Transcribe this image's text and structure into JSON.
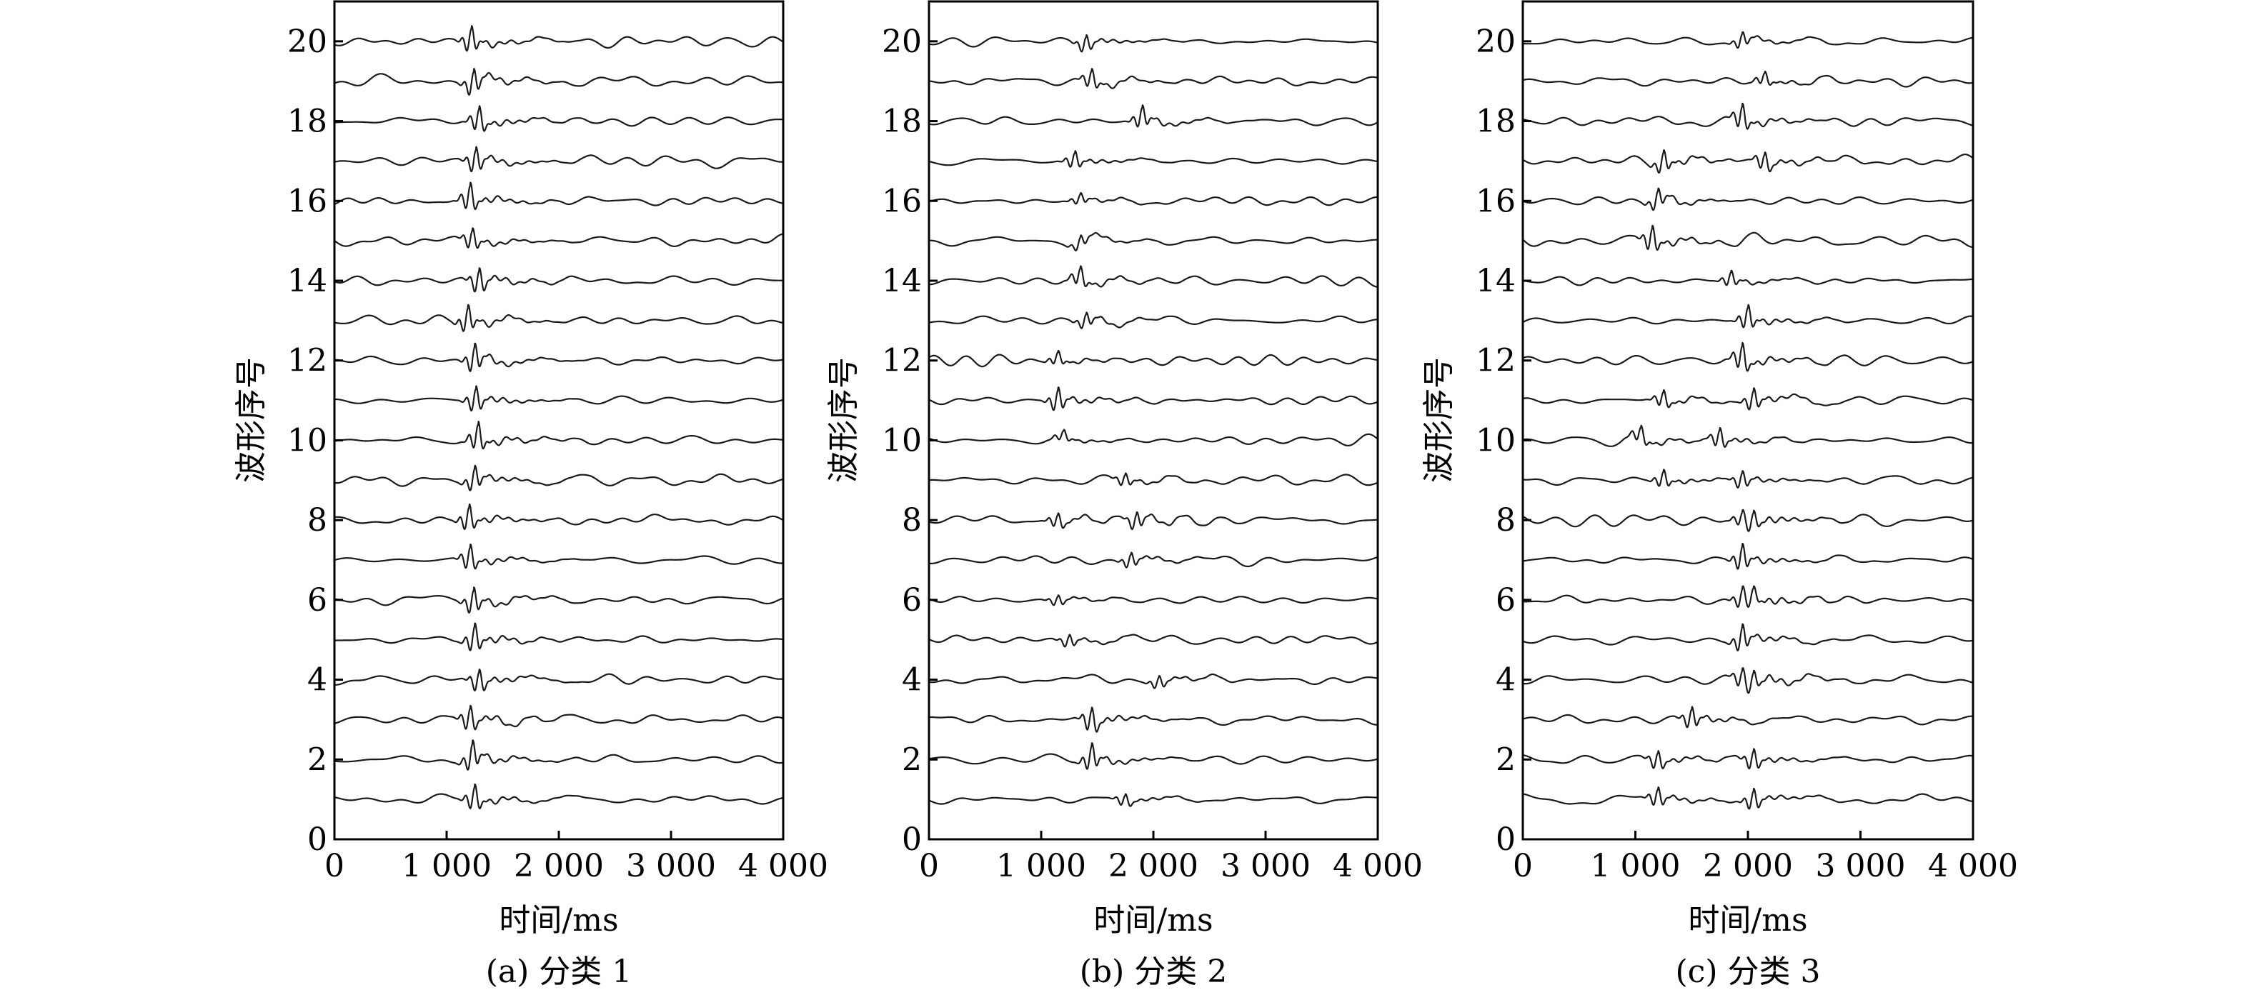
{
  "chart_data": [
    {
      "type": "line",
      "caption": "(a) 分类 1",
      "xlabel": "时间/ms",
      "ylabel": "波形序号",
      "xlim": [
        0,
        4000
      ],
      "ylim": [
        0,
        21
      ],
      "x_ticks": [
        0,
        1000,
        2000,
        3000,
        4000
      ],
      "x_tick_labels": [
        "0",
        "1 000",
        "2 000",
        "3 000",
        "4 000"
      ],
      "y_ticks": [
        0,
        2,
        4,
        6,
        8,
        10,
        12,
        14,
        16,
        18,
        20
      ],
      "y_tick_labels": [
        "0",
        "2",
        "4",
        "6",
        "8",
        "10",
        "12",
        "14",
        "16",
        "18",
        "20"
      ],
      "waveform_count": 20,
      "waveforms": [
        {
          "index": 1,
          "arrivals_ms": [
            1250
          ],
          "amplitudes": [
            0.6
          ]
        },
        {
          "index": 2,
          "arrivals_ms": [
            1230
          ],
          "amplitudes": [
            0.65
          ]
        },
        {
          "index": 3,
          "arrivals_ms": [
            1210
          ],
          "amplitudes": [
            0.6
          ]
        },
        {
          "index": 4,
          "arrivals_ms": [
            1290
          ],
          "amplitudes": [
            0.55
          ]
        },
        {
          "index": 5,
          "arrivals_ms": [
            1250
          ],
          "amplitudes": [
            0.65
          ]
        },
        {
          "index": 6,
          "arrivals_ms": [
            1240
          ],
          "amplitudes": [
            0.6
          ]
        },
        {
          "index": 7,
          "arrivals_ms": [
            1210
          ],
          "amplitudes": [
            0.6
          ]
        },
        {
          "index": 8,
          "arrivals_ms": [
            1200
          ],
          "amplitudes": [
            0.6
          ]
        },
        {
          "index": 9,
          "arrivals_ms": [
            1250
          ],
          "amplitudes": [
            0.55
          ]
        },
        {
          "index": 10,
          "arrivals_ms": [
            1280
          ],
          "amplitudes": [
            0.65
          ]
        },
        {
          "index": 11,
          "arrivals_ms": [
            1260
          ],
          "amplitudes": [
            0.6
          ]
        },
        {
          "index": 12,
          "arrivals_ms": [
            1250
          ],
          "amplitudes": [
            0.65
          ]
        },
        {
          "index": 13,
          "arrivals_ms": [
            1190
          ],
          "amplitudes": [
            0.6
          ]
        },
        {
          "index": 14,
          "arrivals_ms": [
            1290
          ],
          "amplitudes": [
            0.6
          ]
        },
        {
          "index": 15,
          "arrivals_ms": [
            1230
          ],
          "amplitudes": [
            0.5
          ]
        },
        {
          "index": 16,
          "arrivals_ms": [
            1210
          ],
          "amplitudes": [
            0.65
          ]
        },
        {
          "index": 17,
          "arrivals_ms": [
            1260
          ],
          "amplitudes": [
            0.6
          ]
        },
        {
          "index": 18,
          "arrivals_ms": [
            1290
          ],
          "amplitudes": [
            0.6
          ]
        },
        {
          "index": 19,
          "arrivals_ms": [
            1240
          ],
          "amplitudes": [
            0.6
          ]
        },
        {
          "index": 20,
          "arrivals_ms": [
            1220
          ],
          "amplitudes": [
            0.6
          ]
        }
      ]
    },
    {
      "type": "line",
      "caption": "(b) 分类 2",
      "xlabel": "时间/ms",
      "ylabel": "波形序号",
      "xlim": [
        0,
        4000
      ],
      "ylim": [
        0,
        21
      ],
      "x_ticks": [
        0,
        1000,
        2000,
        3000,
        4000
      ],
      "x_tick_labels": [
        "0",
        "1 000",
        "2 000",
        "3 000",
        "4 000"
      ],
      "y_ticks": [
        0,
        2,
        4,
        6,
        8,
        10,
        12,
        14,
        16,
        18,
        20
      ],
      "y_tick_labels": [
        "0",
        "2",
        "4",
        "6",
        "8",
        "10",
        "12",
        "14",
        "16",
        "18",
        "20"
      ],
      "waveform_count": 20,
      "waveforms": [
        {
          "index": 1,
          "arrivals_ms": [
            1750
          ],
          "amplitudes": [
            0.3
          ]
        },
        {
          "index": 2,
          "arrivals_ms": [
            1450
          ],
          "amplitudes": [
            0.6
          ]
        },
        {
          "index": 3,
          "arrivals_ms": [
            1450
          ],
          "amplitudes": [
            0.6
          ]
        },
        {
          "index": 4,
          "arrivals_ms": [
            2050
          ],
          "amplitudes": [
            0.3
          ]
        },
        {
          "index": 5,
          "arrivals_ms": [
            1250
          ],
          "amplitudes": [
            0.3
          ]
        },
        {
          "index": 6,
          "arrivals_ms": [
            1150
          ],
          "amplitudes": [
            0.25
          ]
        },
        {
          "index": 7,
          "arrivals_ms": [
            1800
          ],
          "amplitudes": [
            0.35
          ]
        },
        {
          "index": 8,
          "arrivals_ms": [
            1150,
            1850
          ],
          "amplitudes": [
            0.35,
            0.4
          ]
        },
        {
          "index": 9,
          "arrivals_ms": [
            1750
          ],
          "amplitudes": [
            0.3
          ]
        },
        {
          "index": 10,
          "arrivals_ms": [
            1200
          ],
          "amplitudes": [
            0.25
          ]
        },
        {
          "index": 11,
          "arrivals_ms": [
            1150
          ],
          "amplitudes": [
            0.55
          ]
        },
        {
          "index": 12,
          "arrivals_ms": [
            1150
          ],
          "amplitudes": [
            0.3
          ]
        },
        {
          "index": 13,
          "arrivals_ms": [
            1400
          ],
          "amplitudes": [
            0.35
          ]
        },
        {
          "index": 14,
          "arrivals_ms": [
            1350
          ],
          "amplitudes": [
            0.45
          ]
        },
        {
          "index": 15,
          "arrivals_ms": [
            1350
          ],
          "amplitudes": [
            0.3
          ]
        },
        {
          "index": 16,
          "arrivals_ms": [
            1350
          ],
          "amplitudes": [
            0.25
          ]
        },
        {
          "index": 17,
          "arrivals_ms": [
            1300
          ],
          "amplitudes": [
            0.4
          ]
        },
        {
          "index": 18,
          "arrivals_ms": [
            1900
          ],
          "amplitudes": [
            0.5
          ]
        },
        {
          "index": 19,
          "arrivals_ms": [
            1450
          ],
          "amplitudes": [
            0.45
          ]
        },
        {
          "index": 20,
          "arrivals_ms": [
            1400
          ],
          "amplitudes": [
            0.4
          ]
        }
      ]
    },
    {
      "type": "line",
      "caption": "(c) 分类 3",
      "xlabel": "时间/ms",
      "ylabel": "波形序号",
      "xlim": [
        0,
        4000
      ],
      "ylim": [
        0,
        21
      ],
      "x_ticks": [
        0,
        1000,
        2000,
        3000,
        4000
      ],
      "x_tick_labels": [
        "0",
        "1 000",
        "2 000",
        "3 000",
        "4 000"
      ],
      "y_ticks": [
        0,
        2,
        4,
        6,
        8,
        10,
        12,
        14,
        16,
        18,
        20
      ],
      "y_tick_labels": [
        "0",
        "2",
        "4",
        "6",
        "8",
        "10",
        "12",
        "14",
        "16",
        "18",
        "20"
      ],
      "waveform_count": 20,
      "waveforms": [
        {
          "index": 1,
          "arrivals_ms": [
            1200,
            2050
          ],
          "amplitudes": [
            0.45,
            0.5
          ]
        },
        {
          "index": 2,
          "arrivals_ms": [
            1200,
            2050
          ],
          "amplitudes": [
            0.45,
            0.5
          ]
        },
        {
          "index": 3,
          "arrivals_ms": [
            1500
          ],
          "amplitudes": [
            0.5
          ]
        },
        {
          "index": 4,
          "arrivals_ms": [
            1950,
            2050
          ],
          "amplitudes": [
            0.45,
            0.45
          ]
        },
        {
          "index": 5,
          "arrivals_ms": [
            1950
          ],
          "amplitudes": [
            0.6
          ]
        },
        {
          "index": 6,
          "arrivals_ms": [
            1950,
            2050
          ],
          "amplitudes": [
            0.45,
            0.4
          ]
        },
        {
          "index": 7,
          "arrivals_ms": [
            1950
          ],
          "amplitudes": [
            0.6
          ]
        },
        {
          "index": 8,
          "arrivals_ms": [
            1950,
            2050
          ],
          "amplitudes": [
            0.35,
            0.45
          ]
        },
        {
          "index": 9,
          "arrivals_ms": [
            1250,
            1950
          ],
          "amplitudes": [
            0.4,
            0.4
          ]
        },
        {
          "index": 10,
          "arrivals_ms": [
            1050,
            1750
          ],
          "amplitudes": [
            0.4,
            0.45
          ]
        },
        {
          "index": 11,
          "arrivals_ms": [
            1250,
            2050
          ],
          "amplitudes": [
            0.4,
            0.5
          ]
        },
        {
          "index": 12,
          "arrivals_ms": [
            1950
          ],
          "amplitudes": [
            0.65
          ]
        },
        {
          "index": 13,
          "arrivals_ms": [
            2000
          ],
          "amplitudes": [
            0.55
          ]
        },
        {
          "index": 14,
          "arrivals_ms": [
            1850
          ],
          "amplitudes": [
            0.35
          ]
        },
        {
          "index": 15,
          "arrivals_ms": [
            1150
          ],
          "amplitudes": [
            0.6
          ]
        },
        {
          "index": 16,
          "arrivals_ms": [
            1200
          ],
          "amplitudes": [
            0.45
          ]
        },
        {
          "index": 17,
          "arrivals_ms": [
            1250,
            2150
          ],
          "amplitudes": [
            0.5,
            0.45
          ]
        },
        {
          "index": 18,
          "arrivals_ms": [
            1950
          ],
          "amplitudes": [
            0.6
          ]
        },
        {
          "index": 19,
          "arrivals_ms": [
            2150
          ],
          "amplitudes": [
            0.3
          ]
        },
        {
          "index": 20,
          "arrivals_ms": [
            1950
          ],
          "amplitudes": [
            0.35
          ]
        }
      ]
    }
  ]
}
